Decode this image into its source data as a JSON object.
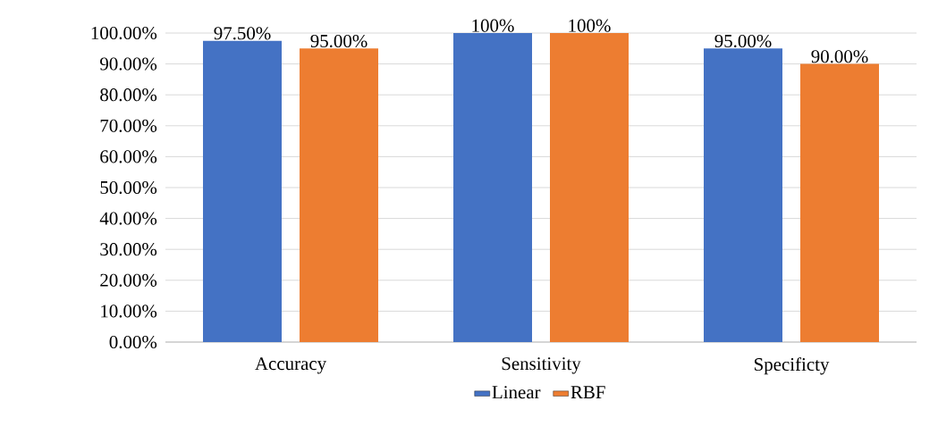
{
  "chart_data": {
    "type": "bar",
    "categories": [
      "Accuracy",
      "Sensitivity",
      "Specificty"
    ],
    "series": [
      {
        "name": "Linear",
        "color": "#4472c4",
        "values": [
          97.5,
          100,
          95
        ],
        "value_labels": [
          "97.50%",
          "100%",
          "95.00%"
        ]
      },
      {
        "name": "RBF",
        "color": "#ed7d31",
        "values": [
          95,
          100,
          90
        ],
        "value_labels": [
          "95.00%",
          "100%",
          "90.00%"
        ]
      }
    ],
    "ylim": [
      0,
      100
    ],
    "yticks": [
      {
        "value": 0,
        "label": "0.00%"
      },
      {
        "value": 10,
        "label": "10.00%"
      },
      {
        "value": 20,
        "label": "20.00%"
      },
      {
        "value": 30,
        "label": "30.00%"
      },
      {
        "value": 40,
        "label": "40.00%"
      },
      {
        "value": 50,
        "label": "50.00%"
      },
      {
        "value": 60,
        "label": "60.00%"
      },
      {
        "value": 70,
        "label": "70.00%"
      },
      {
        "value": 80,
        "label": "80.00%"
      },
      {
        "value": 90,
        "label": "90.00%"
      },
      {
        "value": 100,
        "label": "100.00%"
      }
    ],
    "grid": "y",
    "legend": "bottom"
  }
}
